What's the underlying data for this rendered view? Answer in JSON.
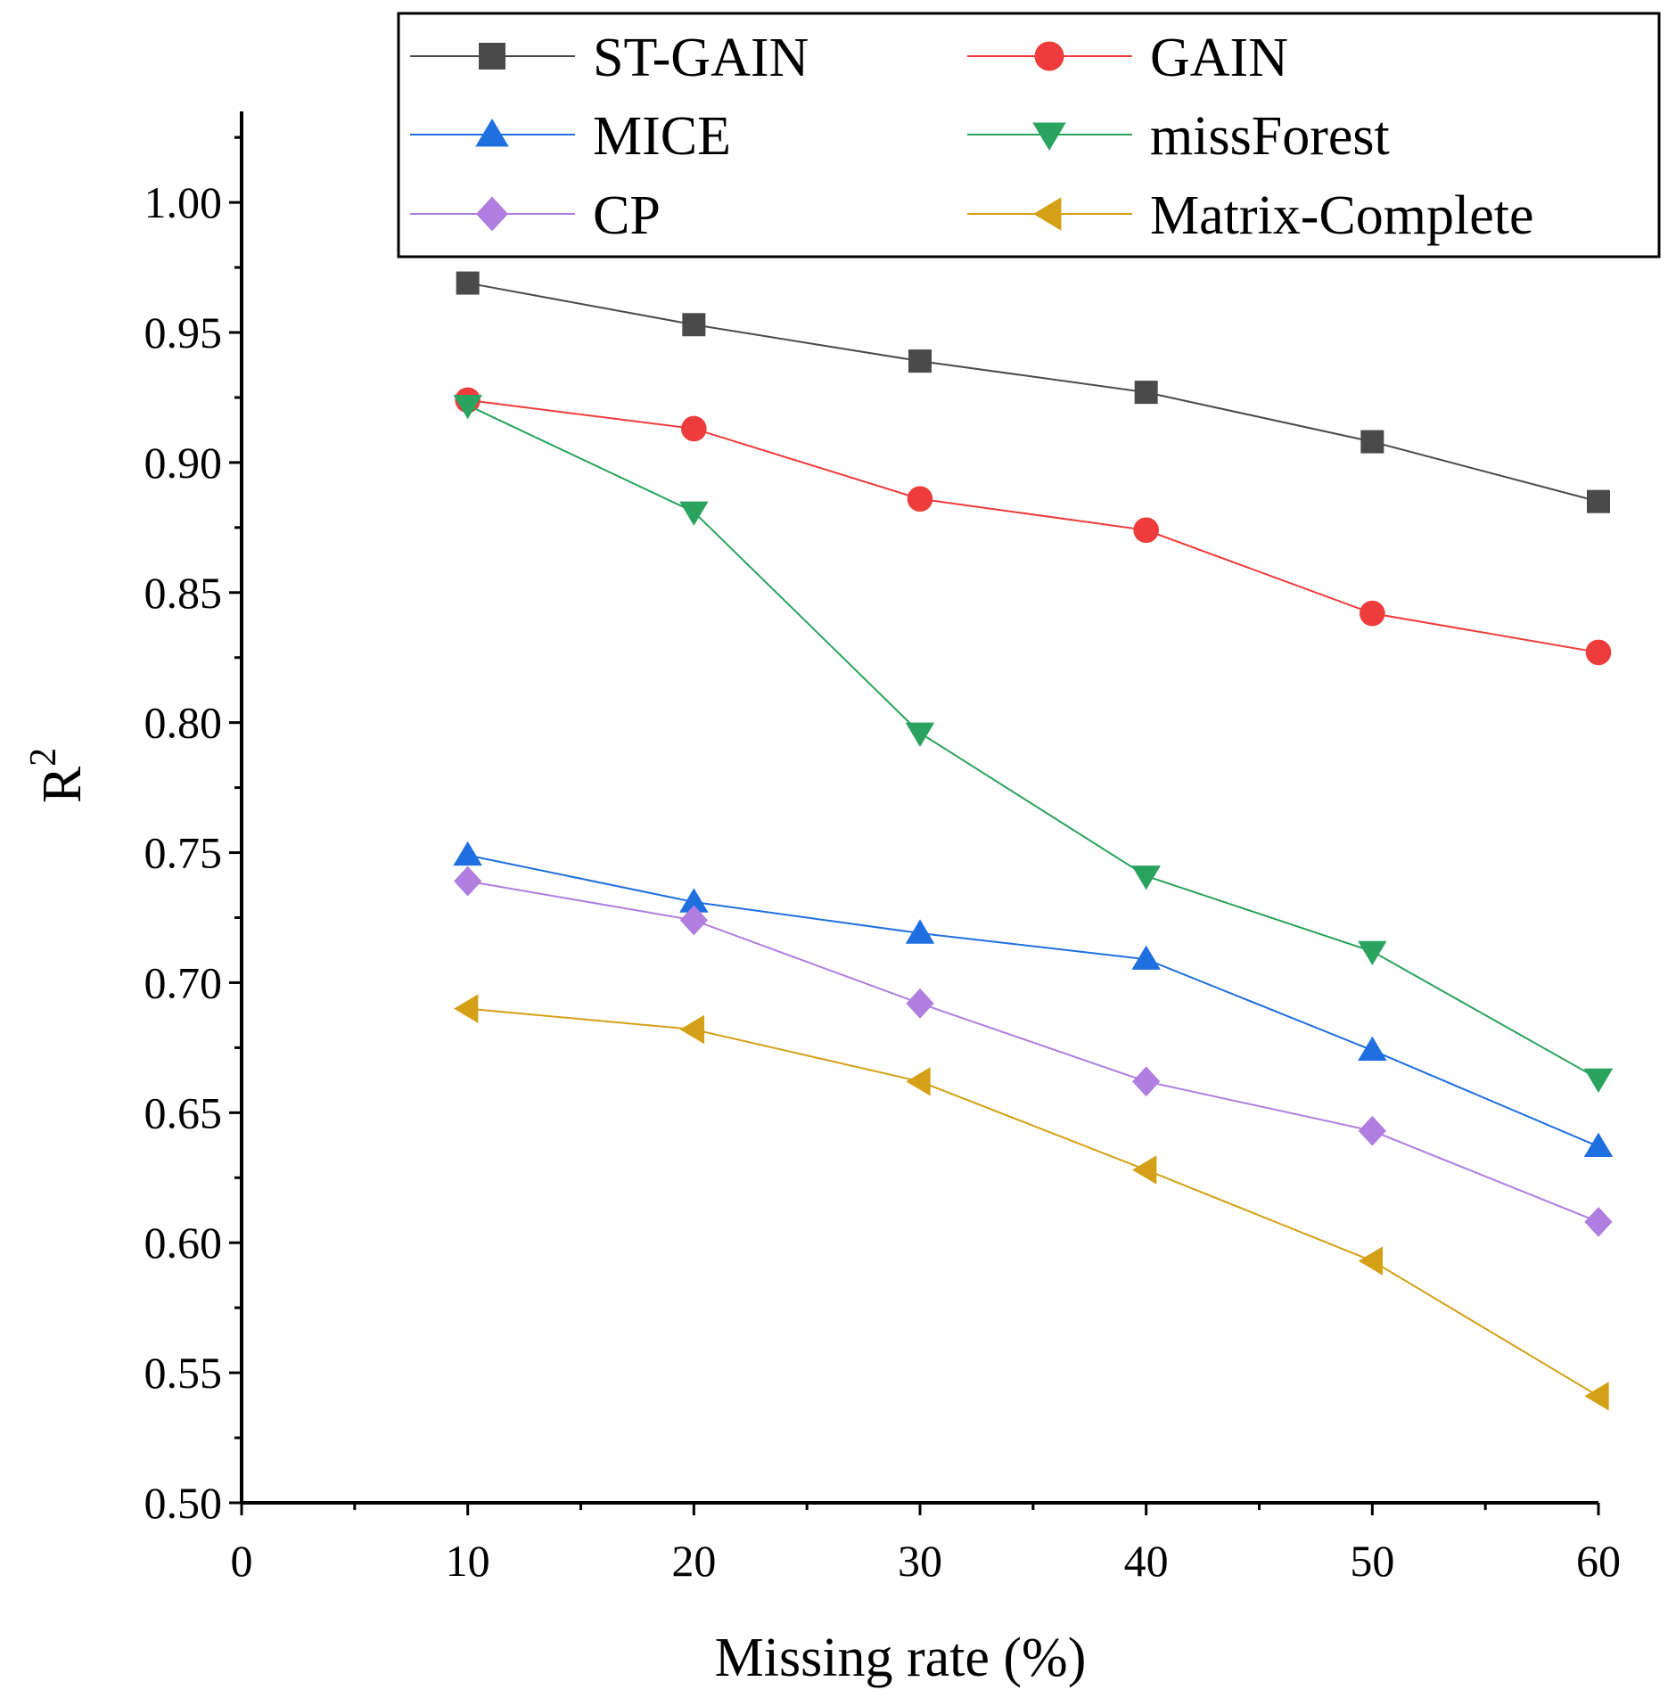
{
  "chart_data": {
    "type": "line",
    "title": "",
    "xlabel": "Missing rate (%)",
    "ylabel": "R",
    "ylabel_superscript": "2",
    "xlim": [
      0,
      60
    ],
    "ylim": [
      0.5,
      1.035
    ],
    "xticks": [
      0,
      10,
      20,
      30,
      40,
      50,
      60
    ],
    "yticks": [
      0.5,
      0.55,
      0.6,
      0.65,
      0.7,
      0.75,
      0.8,
      0.85,
      0.9,
      0.95,
      1.0
    ],
    "x": [
      10,
      20,
      30,
      40,
      50,
      60
    ],
    "legend_position": "top-right",
    "series": [
      {
        "name": "ST-GAIN",
        "marker": "square",
        "color": "#4a4a4a",
        "values": [
          0.969,
          0.953,
          0.939,
          0.927,
          0.908,
          0.885
        ]
      },
      {
        "name": "GAIN",
        "marker": "circle",
        "color": "#ee3b3b",
        "values": [
          0.924,
          0.913,
          0.886,
          0.874,
          0.842,
          0.827
        ]
      },
      {
        "name": "MICE",
        "marker": "triangle-up",
        "color": "#1f6fe0",
        "values": [
          0.749,
          0.731,
          0.719,
          0.709,
          0.674,
          0.637
        ]
      },
      {
        "name": "missForest",
        "marker": "triangle-down",
        "color": "#2aa35f",
        "values": [
          0.922,
          0.881,
          0.796,
          0.741,
          0.712,
          0.663
        ]
      },
      {
        "name": "CP",
        "marker": "diamond",
        "color": "#b07ee0",
        "values": [
          0.739,
          0.724,
          0.692,
          0.662,
          0.643,
          0.608
        ]
      },
      {
        "name": "Matrix-Complete",
        "marker": "triangle-left",
        "color": "#d4a017",
        "values": [
          0.69,
          0.682,
          0.662,
          0.628,
          0.593,
          0.541
        ]
      }
    ]
  }
}
